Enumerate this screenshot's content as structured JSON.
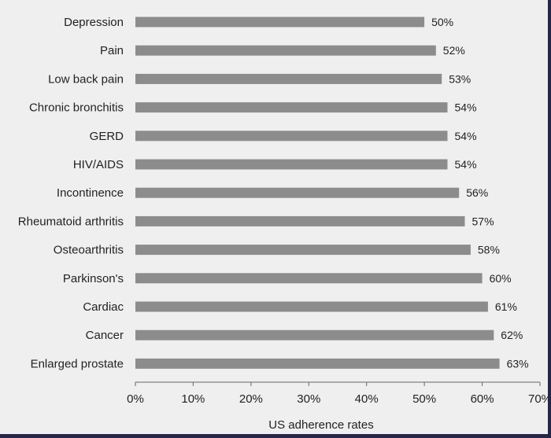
{
  "chart_data": {
    "type": "bar",
    "orientation": "horizontal",
    "categories": [
      "Depression",
      "Pain",
      "Low back pain",
      "Chronic bronchitis",
      "GERD",
      "HIV/AIDS",
      "Incontinence",
      "Rheumatoid arthritis",
      "Osteoarthritis",
      "Parkinson's",
      "Cardiac",
      "Cancer",
      "Enlarged prostate"
    ],
    "values": [
      50,
      52,
      53,
      54,
      54,
      54,
      56,
      57,
      58,
      60,
      61,
      62,
      63
    ],
    "value_labels": [
      "50%",
      "52%",
      "53%",
      "54%",
      "54%",
      "54%",
      "56%",
      "57%",
      "58%",
      "60%",
      "61%",
      "62%",
      "63%"
    ],
    "xlabel": "US adherence rates",
    "ylabel": "",
    "title": "",
    "xlim": [
      0,
      70
    ],
    "xticks": [
      0,
      10,
      20,
      30,
      40,
      50,
      60,
      70
    ],
    "xtick_labels": [
      "0%",
      "10%",
      "20%",
      "30%",
      "40%",
      "50%",
      "60%",
      "70%"
    ],
    "grid": false,
    "legend": "none",
    "colors": {
      "bar": "#8c8c8c",
      "background": "#efefef",
      "border": "#26254a",
      "text": "#222222",
      "axis": "#666666"
    }
  }
}
